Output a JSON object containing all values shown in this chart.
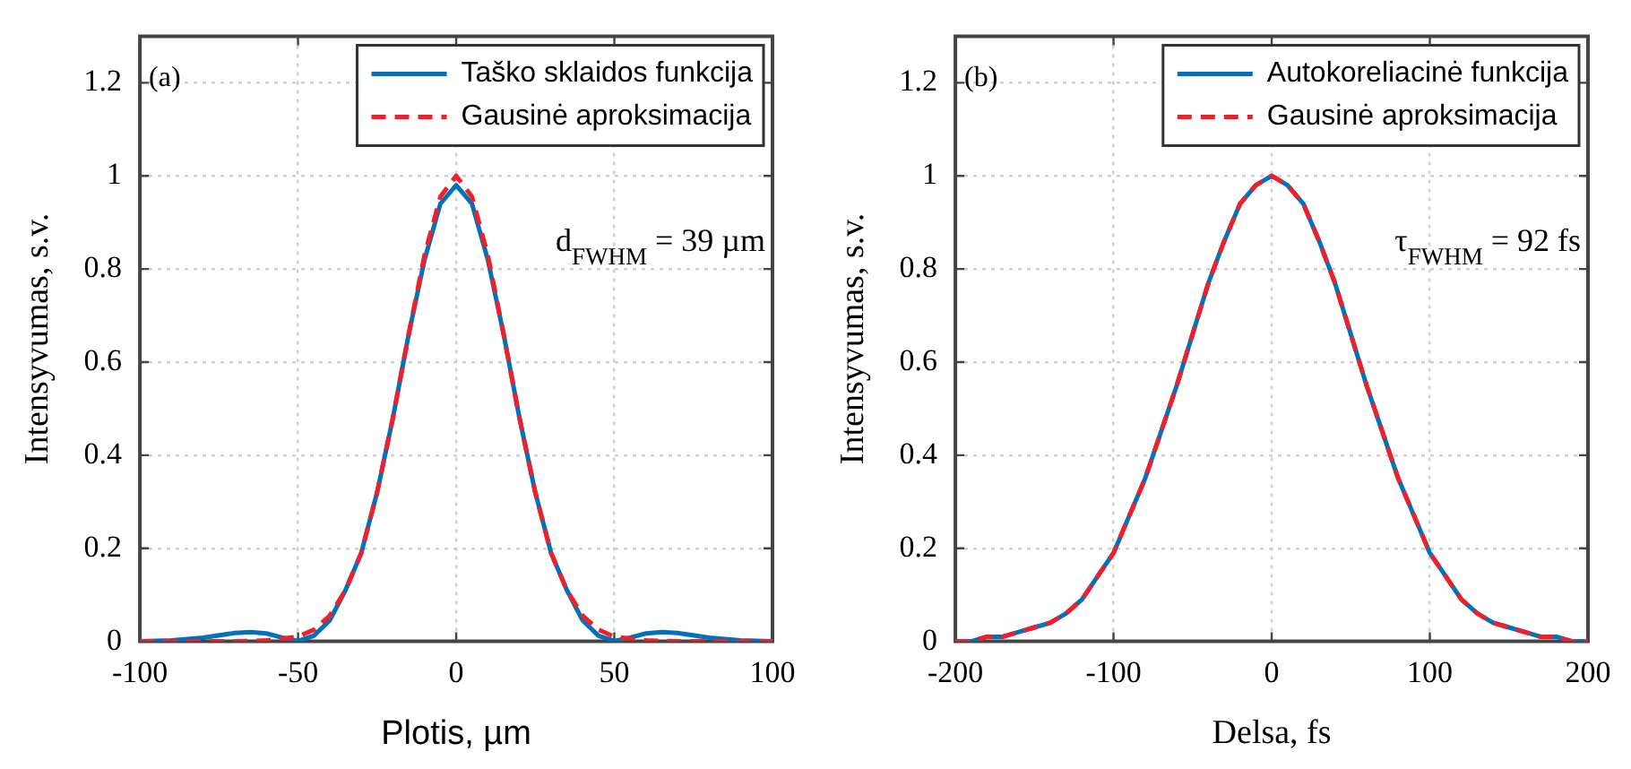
{
  "chart_data": [
    {
      "type": "line",
      "xlabel": "Plotis, µm",
      "ylabel": "Intensyvumas, s.v.",
      "xlim": [
        -100,
        100
      ],
      "xticks": [
        -100,
        -50,
        0,
        50,
        100
      ],
      "ylim": [
        0,
        1.3
      ],
      "yticks": [
        0,
        0.2,
        0.4,
        0.6,
        0.8,
        1,
        1.2
      ],
      "grid": true,
      "legend": "top right",
      "annotations": [
        "(a)",
        "d$_{FWHM}$ = 39 µm"
      ],
      "series": [
        {
          "name": "Taško sklaidos funkcija",
          "color": "#0072bd",
          "line_style": "solid",
          "x": [
            -100,
            -90,
            -80,
            -70,
            -65,
            -60,
            -55,
            -50,
            -45,
            -40,
            -35,
            -30,
            -25,
            -20,
            -15,
            -10,
            -5,
            0,
            5,
            10,
            15,
            20,
            25,
            30,
            35,
            40,
            45,
            50,
            55,
            60,
            65,
            70,
            80,
            90,
            100
          ],
          "values": [
            0,
            0.002,
            0.008,
            0.018,
            0.02,
            0.017,
            0.008,
            0.001,
            0.012,
            0.045,
            0.11,
            0.19,
            0.32,
            0.48,
            0.66,
            0.82,
            0.94,
            0.98,
            0.94,
            0.82,
            0.66,
            0.48,
            0.32,
            0.19,
            0.11,
            0.045,
            0.012,
            0.001,
            0.008,
            0.017,
            0.02,
            0.018,
            0.008,
            0.002,
            0
          ]
        },
        {
          "name": "Gausinė aproksimacija",
          "color": "#f0202a",
          "line_style": "dashed",
          "x": [
            -100,
            -80,
            -70,
            -60,
            -50,
            -45,
            -40,
            -35,
            -30,
            -25,
            -20,
            -15,
            -10,
            -5,
            0,
            5,
            10,
            15,
            20,
            25,
            30,
            35,
            40,
            45,
            50,
            60,
            70,
            80,
            100
          ],
          "values": [
            0,
            0,
            0,
            0.002,
            0.01,
            0.025,
            0.055,
            0.11,
            0.19,
            0.32,
            0.48,
            0.66,
            0.83,
            0.955,
            1,
            0.955,
            0.83,
            0.66,
            0.48,
            0.32,
            0.19,
            0.11,
            0.055,
            0.025,
            0.01,
            0.002,
            0,
            0,
            0
          ]
        }
      ]
    },
    {
      "type": "line",
      "xlabel": "Delsa, fs",
      "ylabel": "Intensyvumas, s.v.",
      "xlim": [
        -200,
        200
      ],
      "xticks": [
        -200,
        -100,
        0,
        100,
        200
      ],
      "ylim": [
        0,
        1.3
      ],
      "yticks": [
        0,
        0.2,
        0.4,
        0.6,
        0.8,
        1,
        1.2
      ],
      "grid": true,
      "legend": "top right",
      "annotations": [
        "(b)",
        "τ$_{FWHM}$ = 92 fs"
      ],
      "series": [
        {
          "name": "Autokoreliacinė funkcija",
          "color": "#0072bd",
          "line_style": "solid",
          "x": [
            -200,
            -190,
            -180,
            -170,
            -160,
            -150,
            -140,
            -130,
            -120,
            -110,
            -100,
            -90,
            -80,
            -70,
            -60,
            -50,
            -40,
            -30,
            -20,
            -10,
            0,
            10,
            20,
            30,
            40,
            50,
            60,
            70,
            80,
            90,
            100,
            110,
            120,
            130,
            140,
            150,
            160,
            170,
            180,
            190,
            200
          ],
          "values": [
            0,
            0,
            0.01,
            0.01,
            0.02,
            0.03,
            0.04,
            0.06,
            0.09,
            0.14,
            0.19,
            0.27,
            0.35,
            0.45,
            0.55,
            0.66,
            0.77,
            0.86,
            0.94,
            0.98,
            1,
            0.98,
            0.94,
            0.86,
            0.77,
            0.66,
            0.55,
            0.45,
            0.35,
            0.27,
            0.19,
            0.14,
            0.09,
            0.06,
            0.04,
            0.03,
            0.02,
            0.01,
            0.01,
            0,
            0
          ]
        },
        {
          "name": "Gausinė aproksimacija",
          "color": "#f0202a",
          "line_style": "dashed",
          "x": [
            -200,
            -190,
            -180,
            -170,
            -160,
            -150,
            -140,
            -130,
            -120,
            -110,
            -100,
            -90,
            -80,
            -70,
            -60,
            -50,
            -40,
            -30,
            -20,
            -10,
            0,
            10,
            20,
            30,
            40,
            50,
            60,
            70,
            80,
            90,
            100,
            110,
            120,
            130,
            140,
            150,
            160,
            170,
            180,
            190,
            200
          ],
          "values": [
            0,
            0,
            0.01,
            0.01,
            0.02,
            0.03,
            0.04,
            0.06,
            0.09,
            0.14,
            0.19,
            0.27,
            0.35,
            0.45,
            0.55,
            0.66,
            0.77,
            0.86,
            0.94,
            0.98,
            1,
            0.98,
            0.94,
            0.86,
            0.77,
            0.66,
            0.55,
            0.45,
            0.35,
            0.27,
            0.19,
            0.14,
            0.09,
            0.06,
            0.04,
            0.03,
            0.02,
            0.01,
            0.01,
            0,
            0
          ]
        }
      ]
    }
  ]
}
